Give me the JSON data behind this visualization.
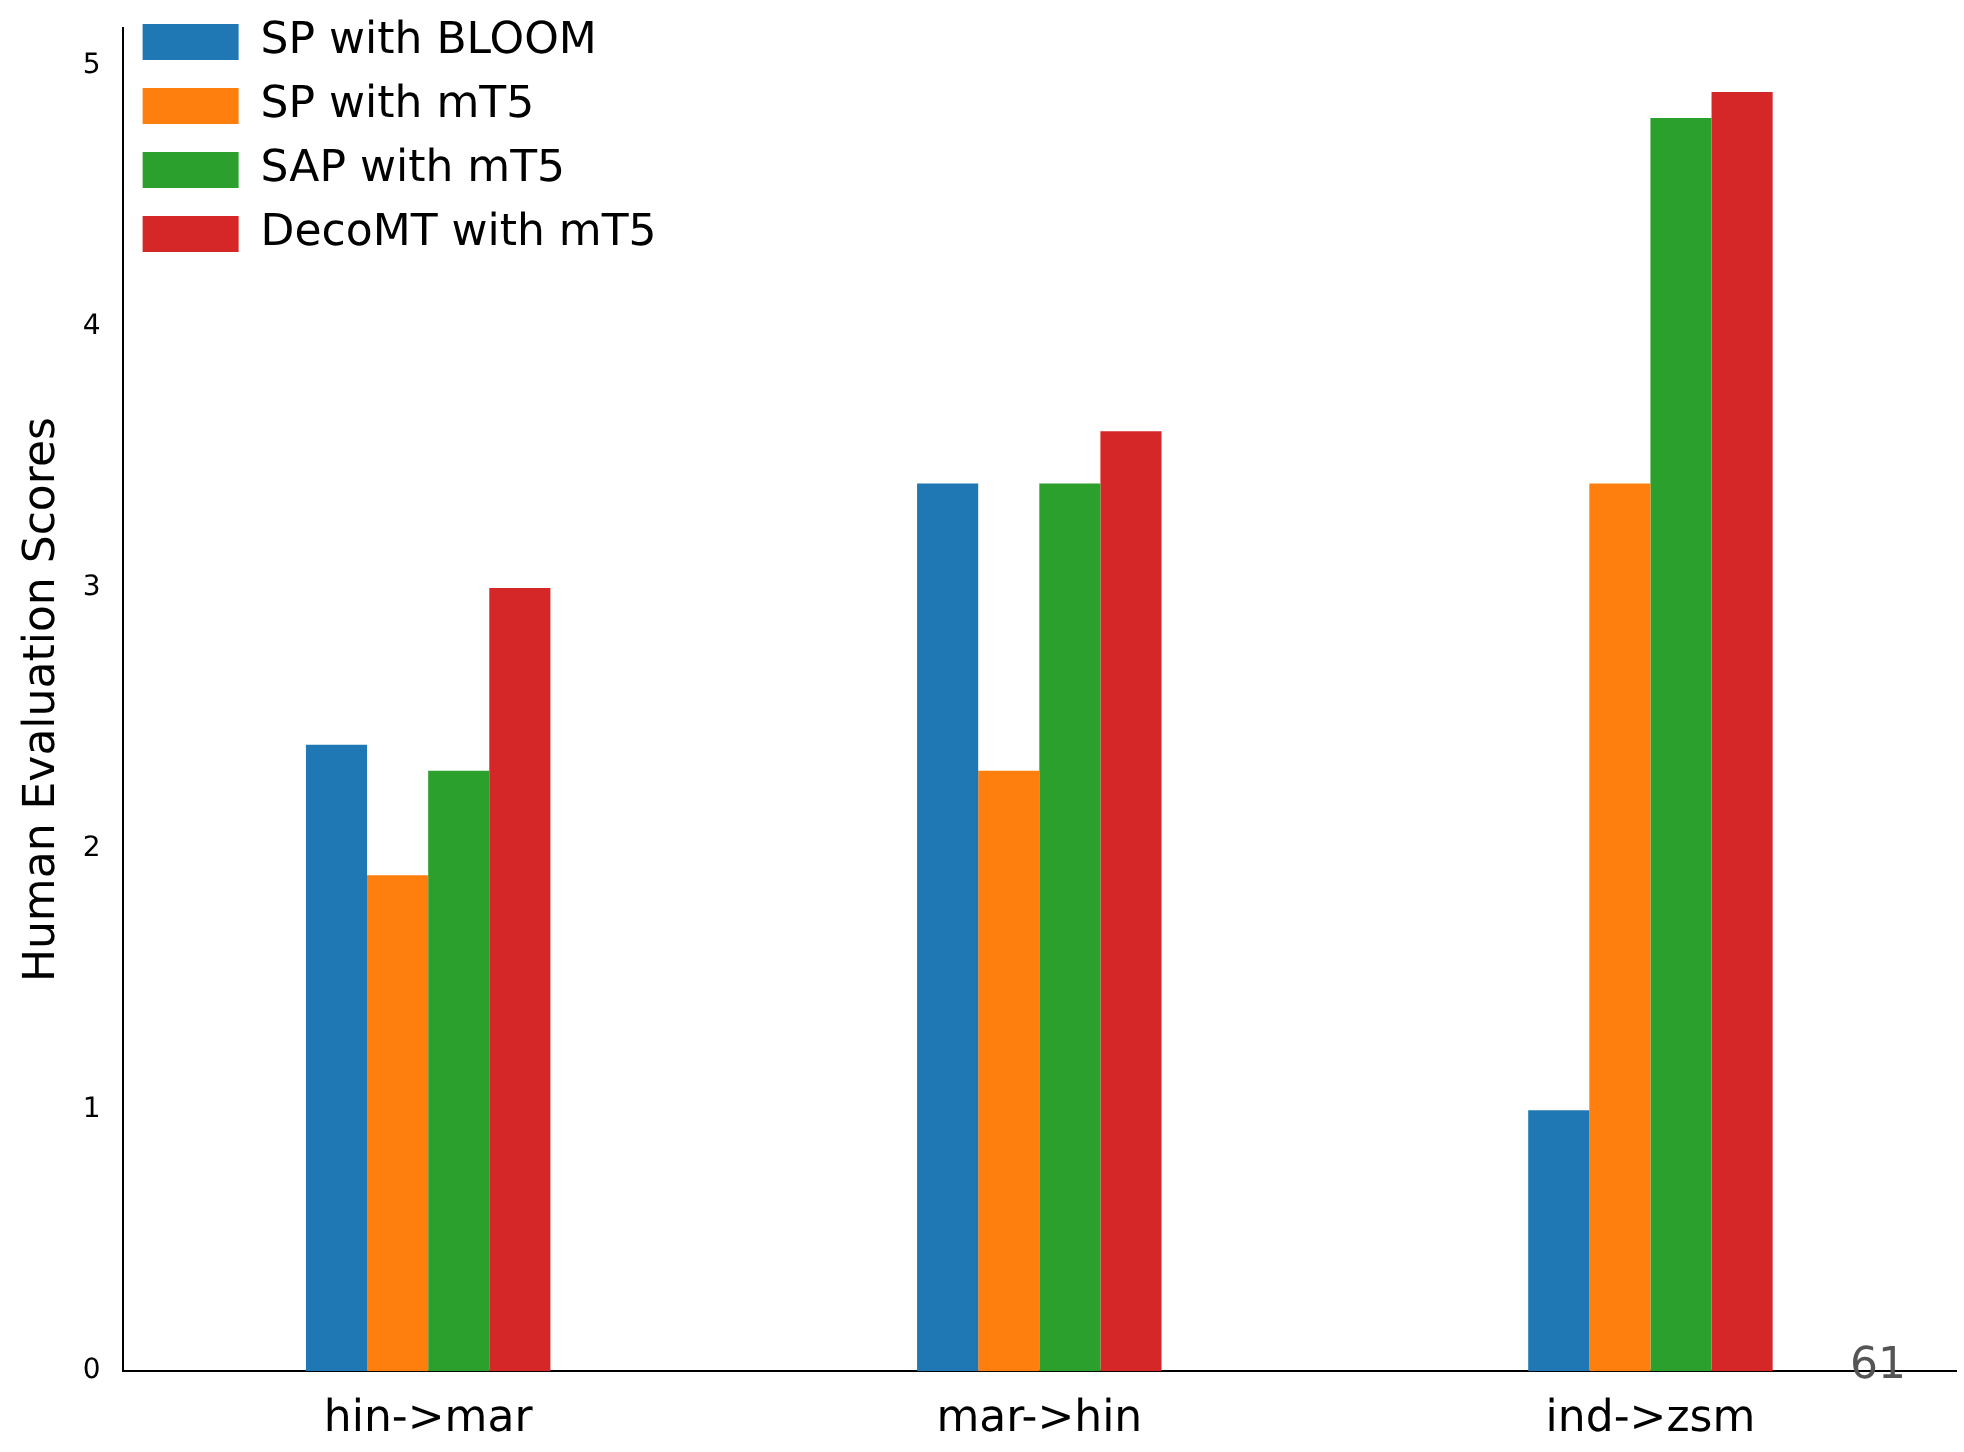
{
  "chart_data": {
    "type": "bar",
    "ylabel": "Human Evaluation Scores",
    "categories": [
      "hin->mar",
      "mar->hin",
      "ind->zsm"
    ],
    "series": [
      {
        "name": "SP with BLOOM",
        "color": "#1f77b4",
        "values": [
          2.4,
          3.4,
          1.0
        ]
      },
      {
        "name": "SP with mT5",
        "color": "#ff7f0e",
        "values": [
          1.9,
          2.3,
          3.4
        ]
      },
      {
        "name": "SAP with mT5",
        "color": "#2ca02c",
        "values": [
          2.3,
          3.4,
          4.8
        ]
      },
      {
        "name": "DecoMT with mT5",
        "color": "#d62728",
        "values": [
          3.0,
          3.6,
          4.9
        ]
      }
    ],
    "ylim": [
      0,
      5.145
    ],
    "yticks": [
      0,
      1,
      2,
      3,
      4,
      5
    ],
    "grid": false,
    "legend": "top left",
    "annotations": [
      "61"
    ]
  }
}
